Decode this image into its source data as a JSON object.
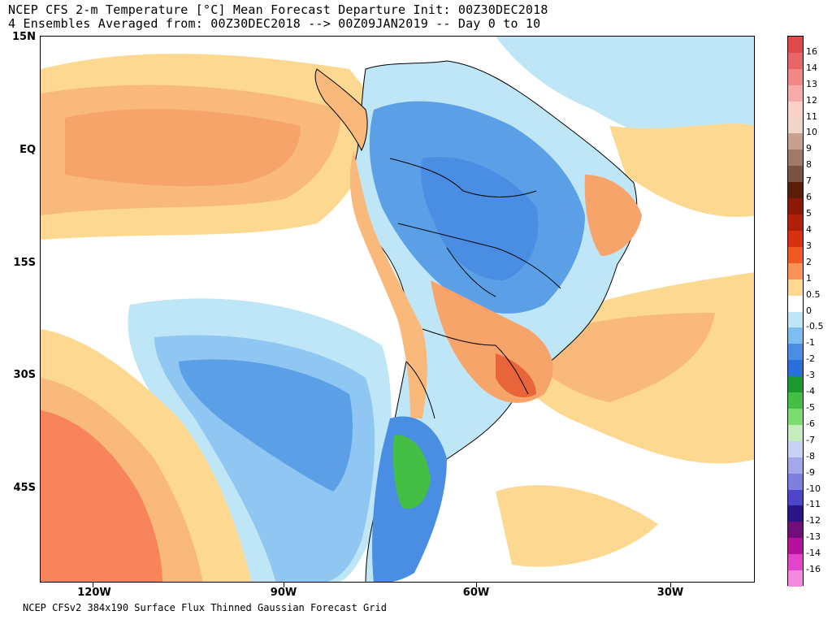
{
  "header": {
    "title_line1": "NCEP CFS 2-m Temperature [°C] Mean Forecast Departure Init: 00Z30DEC2018",
    "title_line2": "4 Ensembles Averaged from: 00Z30DEC2018 --> 00Z09JAN2019 -- Day 0 to 10"
  },
  "footer": {
    "text": "NCEP CFSv2 384x190 Surface Flux Thinned Gaussian Forecast Grid"
  },
  "map": {
    "lat_labels": [
      "15N",
      "EQ",
      "15S",
      "30S",
      "45S"
    ],
    "lon_labels": [
      "120W",
      "90W",
      "60W",
      "30W"
    ],
    "colors": {
      "land_outline": "#000000",
      "ocean_warm": "#f7a46a",
      "ocean_cool": "#8fc6f2"
    }
  },
  "colorbar": {
    "labels": [
      "16",
      "14",
      "13",
      "12",
      "11",
      "10",
      "9",
      "8",
      "7",
      "6",
      "5",
      "4",
      "3",
      "2",
      "1",
      "0.5",
      "0",
      "-0.5",
      "-1",
      "-2",
      "-3",
      "-4",
      "-5",
      "-6",
      "-7",
      "-8",
      "-9",
      "-10",
      "-11",
      "-12",
      "-13",
      "-14",
      "-16"
    ],
    "colors": [
      "#e04a4a",
      "#e86666",
      "#f08888",
      "#f6aaaa",
      "#fbd0c8",
      "#f0d6c8",
      "#c8a090",
      "#a07a68",
      "#7a5442",
      "#5a1e0a",
      "#8c1808",
      "#b02008",
      "#d63210",
      "#f05a22",
      "#f99456",
      "#fdd890",
      "#ffffff",
      "#bfe6f7",
      "#7dbdf0",
      "#4a8ee4",
      "#2a6fd8",
      "#1c9a30",
      "#44be44",
      "#7cdc70",
      "#c4ecbc",
      "#c6d2f4",
      "#a4a8ea",
      "#7c7ee0",
      "#4e44c8",
      "#2a1488",
      "#720e7a",
      "#b4129c",
      "#e244cc",
      "#f48ade"
    ]
  }
}
